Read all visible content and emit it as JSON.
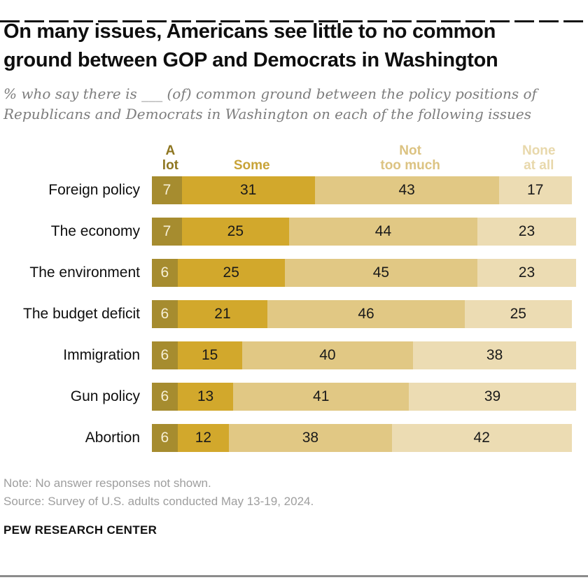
{
  "header": {
    "title_lines": [
      "On many issues, Americans see little to no common",
      "ground between GOP and Democrats in Washington"
    ],
    "subtitle_lines": [
      "% who say there is ___ (of) common ground between the policy positions of",
      "Republicans and Democrats in Washington on each of the following issues"
    ]
  },
  "chart_data": {
    "type": "bar",
    "stacked": true,
    "orientation": "horizontal",
    "unit": "percent",
    "axis_range": [
      0,
      100
    ],
    "grid": false,
    "legend_position": "top",
    "categories": [
      "Foreign policy",
      "The economy",
      "The environment",
      "The budget deficit",
      "Immigration",
      "Gun policy",
      "Abortion"
    ],
    "series": [
      {
        "name": "A lot",
        "color": "#a68c2f",
        "value_text_color": "#f6efd5",
        "values": [
          7,
          7,
          6,
          6,
          6,
          6,
          6
        ]
      },
      {
        "name": "Some",
        "color": "#d2a82c",
        "value_text_color": "#1a1a1a",
        "values": [
          31,
          25,
          25,
          21,
          15,
          13,
          12
        ]
      },
      {
        "name": "Not too much",
        "color": "#e1c884",
        "value_text_color": "#1a1a1a",
        "values": [
          43,
          44,
          45,
          46,
          40,
          41,
          38
        ]
      },
      {
        "name": "None at all",
        "color": "#ecdcb3",
        "value_text_color": "#1a1a1a",
        "values": [
          17,
          23,
          23,
          25,
          38,
          39,
          42
        ]
      }
    ],
    "legend_items": [
      {
        "lines": [
          "A",
          "lot"
        ],
        "color": "#8e7621",
        "center_pct": 3.5
      },
      {
        "lines": [
          "Some"
        ],
        "color": "#c8a338",
        "center_pct": 22.5
      },
      {
        "lines": [
          "Not",
          "too much"
        ],
        "color": "#dcc382",
        "center_pct": 59.5
      },
      {
        "lines": [
          "None",
          "at all"
        ],
        "color": "#e8d8ab",
        "center_pct": 89.5
      }
    ]
  },
  "footer": {
    "note": "Note: No answer responses not shown.",
    "source": "Source: Survey of U.S. adults conducted May 13-19, 2024.",
    "brand": "PEW RESEARCH CENTER"
  },
  "decor": {
    "top_dash_color": "#141414",
    "bottom_line_color": "#8c8c8c"
  }
}
